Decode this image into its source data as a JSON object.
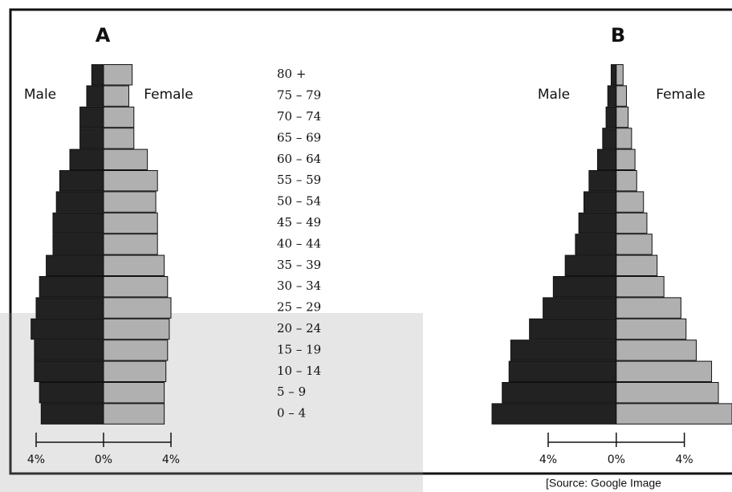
{
  "chart_data": [
    {
      "type": "pyramid",
      "title": "A",
      "categories": [
        "80 +",
        "75 – 79",
        "70 – 74",
        "65 – 69",
        "60 – 64",
        "55 – 59",
        "50 – 54",
        "45 – 49",
        "40 – 44",
        "35 – 39",
        "30 – 34",
        "25 – 29",
        "20 – 24",
        "15 – 19",
        "10 – 14",
        "5 – 9",
        "0 – 4"
      ],
      "series": [
        {
          "name": "Male",
          "color": "#222222",
          "values": [
            0.7,
            1.0,
            1.4,
            1.4,
            2.0,
            2.6,
            2.8,
            3.0,
            3.0,
            3.4,
            3.8,
            4.0,
            4.3,
            4.1,
            4.1,
            3.8,
            3.7
          ]
        },
        {
          "name": "Female",
          "color": "#b0b0b0",
          "values": [
            1.7,
            1.5,
            1.8,
            1.8,
            2.6,
            3.2,
            3.1,
            3.2,
            3.2,
            3.6,
            3.8,
            4.0,
            3.9,
            3.8,
            3.7,
            3.6,
            3.6
          ]
        }
      ],
      "xlim": [
        -5,
        5
      ],
      "xticks": [
        {
          "value": -4,
          "label": "4%"
        },
        {
          "value": 0,
          "label": "0%"
        },
        {
          "value": 4,
          "label": "4%"
        }
      ]
    },
    {
      "type": "pyramid",
      "title": "B",
      "series": [
        {
          "name": "Male",
          "color": "#222222",
          "values": [
            0.3,
            0.5,
            0.6,
            0.8,
            1.1,
            1.6,
            1.9,
            2.2,
            2.4,
            3.0,
            3.7,
            4.3,
            5.1,
            6.2,
            6.3,
            6.7,
            7.3
          ]
        },
        {
          "name": "Female",
          "color": "#b0b0b0",
          "values": [
            0.4,
            0.6,
            0.7,
            0.9,
            1.1,
            1.2,
            1.6,
            1.8,
            2.1,
            2.4,
            2.8,
            3.8,
            4.1,
            4.7,
            5.6,
            6.0,
            6.8
          ]
        }
      ],
      "xlim": [
        -7.3,
        6.8
      ],
      "xticks": [
        {
          "value": -4,
          "label": "4%"
        },
        {
          "value": 0,
          "label": "0%"
        },
        {
          "value": 4,
          "label": "4%"
        }
      ]
    }
  ],
  "source": "[Source:  Google Image"
}
